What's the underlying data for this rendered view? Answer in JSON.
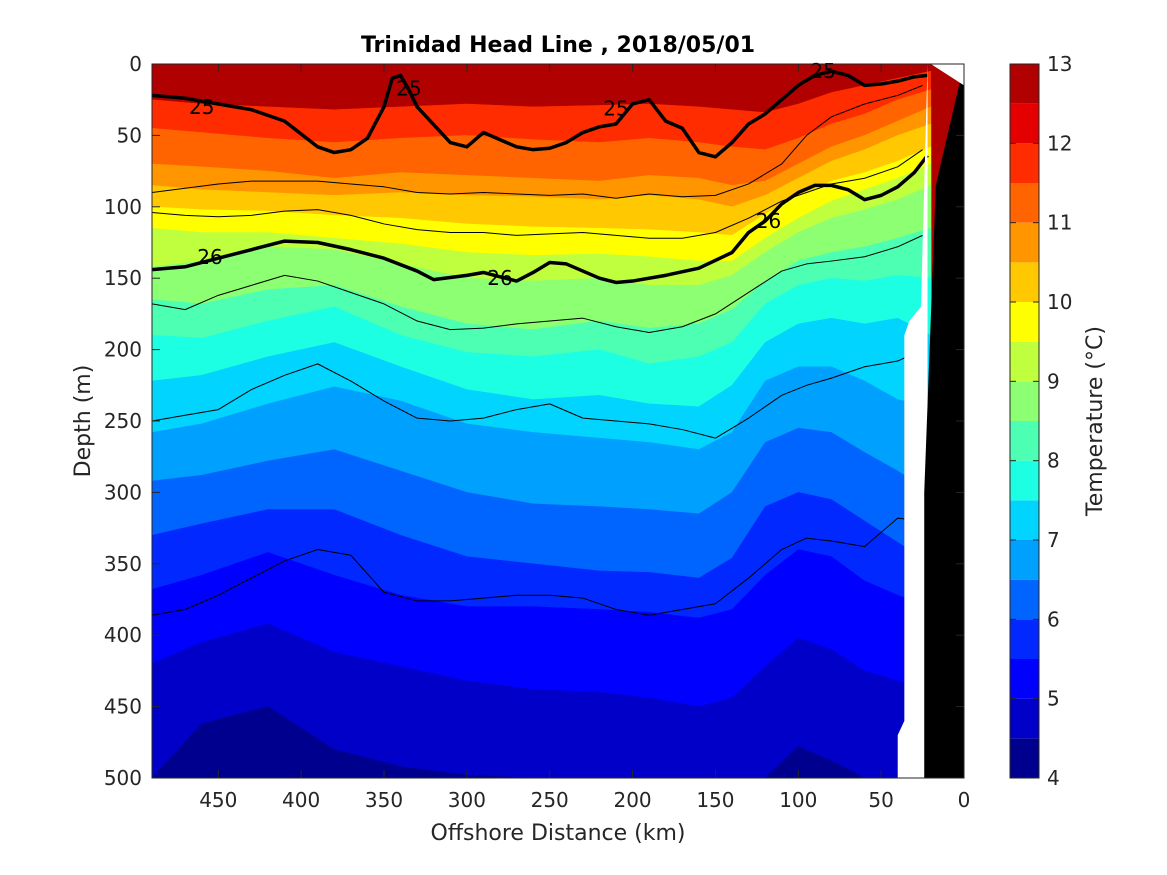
{
  "chart_data": {
    "type": "heatmap",
    "title": "Trinidad Head Line , 2018/05/01",
    "xlabel": "Offshore Distance (km)",
    "ylabel": "Depth (m)",
    "colorbar_label": "Temperature (°C)",
    "xlim": [
      490,
      0
    ],
    "ylim": [
      0,
      500
    ],
    "x_ticks": [
      450,
      400,
      350,
      300,
      250,
      200,
      150,
      100,
      50,
      0
    ],
    "y_ticks": [
      0,
      50,
      100,
      150,
      200,
      250,
      300,
      350,
      400,
      450,
      500
    ],
    "colorbar_ticks": [
      4,
      5,
      6,
      7,
      8,
      9,
      10,
      11,
      12,
      13
    ],
    "temperature_levels": [
      4,
      4.5,
      5,
      5.5,
      6,
      6.5,
      7,
      7.5,
      8,
      8.5,
      9,
      9.5,
      10,
      10.5,
      11,
      11.5,
      12,
      12.5,
      13
    ],
    "level_colors": [
      "#00008f",
      "#0000c8",
      "#0000ff",
      "#0028ff",
      "#0064ff",
      "#00a0ff",
      "#00d4ff",
      "#1cffe2",
      "#4cffb2",
      "#8cff72",
      "#c0ff3e",
      "#ffff00",
      "#ffc800",
      "#ff9600",
      "#ff6400",
      "#ff2c00",
      "#e40000",
      "#b00000"
    ],
    "isotherms": [
      {
        "temp": 12,
        "x": [
          490,
          460,
          420,
          380,
          340,
          300,
          260,
          220,
          190,
          160,
          140,
          120,
          100,
          80,
          60,
          40,
          20
        ],
        "y": [
          25,
          28,
          30,
          32,
          30,
          28,
          30,
          29,
          28,
          30,
          32,
          34,
          28,
          20,
          15,
          10,
          5
        ]
      },
      {
        "temp": 11.5,
        "x": [
          490,
          460,
          420,
          380,
          340,
          300,
          260,
          220,
          190,
          160,
          140,
          120,
          100,
          80,
          60,
          40,
          20
        ],
        "y": [
          45,
          48,
          52,
          55,
          52,
          50,
          53,
          55,
          52,
          55,
          58,
          60,
          52,
          42,
          35,
          25,
          18
        ]
      },
      {
        "temp": 11,
        "x": [
          490,
          460,
          420,
          380,
          340,
          300,
          260,
          220,
          190,
          160,
          140,
          120,
          100,
          80,
          60,
          40,
          20
        ],
        "y": [
          70,
          72,
          75,
          80,
          76,
          78,
          80,
          82,
          78,
          80,
          85,
          82,
          70,
          58,
          50,
          40,
          30
        ]
      },
      {
        "temp": 10.5,
        "x": [
          490,
          460,
          420,
          380,
          340,
          300,
          260,
          220,
          190,
          160,
          140,
          120,
          100,
          80,
          60,
          40,
          20
        ],
        "y": [
          85,
          88,
          90,
          92,
          90,
          92,
          93,
          95,
          92,
          95,
          100,
          92,
          80,
          68,
          60,
          50,
          42
        ]
      },
      {
        "temp": 10,
        "x": [
          490,
          460,
          420,
          380,
          340,
          300,
          260,
          220,
          190,
          160,
          140,
          120,
          100,
          80,
          60,
          40,
          20
        ],
        "y": [
          100,
          102,
          103,
          106,
          108,
          112,
          114,
          115,
          116,
          118,
          120,
          105,
          92,
          82,
          76,
          68,
          58
        ]
      },
      {
        "temp": 9.5,
        "x": [
          490,
          460,
          420,
          380,
          340,
          300,
          260,
          220,
          190,
          160,
          140,
          120,
          100,
          80,
          60,
          40,
          20
        ],
        "y": [
          115,
          118,
          118,
          122,
          126,
          132,
          134,
          133,
          135,
          138,
          138,
          122,
          108,
          96,
          88,
          80,
          70
        ]
      },
      {
        "temp": 9,
        "x": [
          490,
          460,
          420,
          380,
          340,
          300,
          260,
          220,
          190,
          160,
          140,
          120,
          100,
          80,
          60,
          40,
          20
        ],
        "y": [
          142,
          138,
          128,
          130,
          140,
          150,
          152,
          150,
          155,
          155,
          148,
          132,
          118,
          108,
          102,
          95,
          85
        ]
      },
      {
        "temp": 8.5,
        "x": [
          490,
          460,
          420,
          380,
          340,
          300,
          260,
          220,
          190,
          160,
          140,
          120,
          100,
          80,
          60,
          40,
          20
        ],
        "y": [
          165,
          168,
          158,
          155,
          170,
          182,
          186,
          180,
          185,
          182,
          172,
          152,
          138,
          132,
          128,
          122,
          115
        ]
      },
      {
        "temp": 8,
        "x": [
          490,
          460,
          420,
          380,
          340,
          300,
          260,
          220,
          190,
          160,
          140,
          120,
          100,
          80,
          60,
          40,
          20
        ],
        "y": [
          190,
          192,
          180,
          170,
          190,
          202,
          205,
          200,
          210,
          205,
          195,
          168,
          155,
          150,
          152,
          148,
          150
        ]
      },
      {
        "temp": 7.5,
        "x": [
          490,
          460,
          420,
          380,
          340,
          300,
          260,
          220,
          190,
          160,
          140,
          120,
          100,
          80,
          60,
          40,
          20
        ],
        "y": [
          222,
          218,
          205,
          195,
          212,
          228,
          235,
          232,
          238,
          240,
          225,
          195,
          182,
          178,
          182,
          178,
          190
        ]
      },
      {
        "temp": 7,
        "x": [
          490,
          460,
          420,
          380,
          340,
          300,
          260,
          220,
          190,
          160,
          140,
          120,
          100,
          80,
          60,
          40,
          20
        ],
        "y": [
          258,
          252,
          238,
          226,
          236,
          252,
          258,
          262,
          265,
          270,
          258,
          222,
          212,
          212,
          222,
          235,
          240
        ]
      },
      {
        "temp": 6.5,
        "x": [
          490,
          460,
          420,
          380,
          340,
          300,
          260,
          220,
          190,
          160,
          140,
          120,
          100,
          80,
          60,
          40,
          20
        ],
        "y": [
          292,
          288,
          278,
          270,
          285,
          300,
          308,
          310,
          312,
          315,
          300,
          265,
          255,
          258,
          272,
          285,
          300
        ]
      },
      {
        "temp": 6,
        "x": [
          490,
          460,
          420,
          380,
          340,
          300,
          260,
          220,
          190,
          160,
          140,
          120,
          100,
          80,
          60,
          40,
          20
        ],
        "y": [
          330,
          322,
          312,
          312,
          330,
          345,
          350,
          355,
          356,
          360,
          346,
          310,
          300,
          305,
          320,
          335,
          350
        ]
      },
      {
        "temp": 5.5,
        "x": [
          490,
          460,
          420,
          380,
          340,
          300,
          260,
          220,
          190,
          160,
          140,
          120,
          100,
          80,
          60,
          40,
          20
        ],
        "y": [
          368,
          358,
          342,
          358,
          372,
          380,
          380,
          382,
          384,
          388,
          382,
          358,
          340,
          345,
          362,
          372,
          380
        ]
      },
      {
        "temp": 5,
        "x": [
          490,
          460,
          420,
          380,
          340,
          300,
          260,
          220,
          190,
          160,
          140,
          120,
          100,
          80,
          60,
          40,
          20
        ],
        "y": [
          420,
          405,
          392,
          412,
          422,
          432,
          438,
          440,
          444,
          450,
          444,
          422,
          402,
          410,
          425,
          432,
          440
        ]
      },
      {
        "temp": 4.5,
        "x": [
          490,
          460,
          420,
          380,
          340,
          300,
          260,
          220,
          190,
          160,
          140,
          120,
          100,
          80,
          60,
          40,
          20
        ],
        "y": [
          500,
          462,
          450,
          480,
          492,
          498,
          500,
          500,
          500,
          500,
          500,
          500,
          478,
          488,
          500,
          500,
          500
        ]
      }
    ],
    "density_contours": [
      {
        "sigma": 24.5,
        "x": [
          490,
          470,
          450,
          430,
          410,
          390,
          370,
          350,
          330,
          310,
          290,
          270,
          250,
          230,
          210,
          190,
          170,
          150,
          130,
          110,
          95,
          80,
          60,
          40,
          25
        ],
        "y": [
          90,
          87,
          84,
          82,
          82,
          82,
          84,
          86,
          90,
          91,
          90,
          91,
          92,
          91,
          94,
          91,
          93,
          92,
          84,
          70,
          50,
          37,
          28,
          22,
          15
        ],
        "labeled": false
      },
      {
        "sigma": 25,
        "x": [
          490,
          470,
          450,
          430,
          410,
          390,
          380,
          370,
          360,
          350,
          345,
          340,
          335,
          330,
          310,
          300,
          290,
          270,
          260,
          250,
          240,
          230,
          220,
          210,
          200,
          190,
          180,
          170,
          160,
          150,
          140,
          130,
          120,
          110,
          100,
          90,
          80,
          70,
          60,
          50,
          40,
          30,
          22
        ],
        "y": [
          22,
          24,
          28,
          32,
          40,
          58,
          62,
          60,
          52,
          30,
          10,
          8,
          18,
          30,
          55,
          58,
          48,
          58,
          60,
          59,
          55,
          48,
          44,
          42,
          28,
          25,
          40,
          45,
          62,
          65,
          55,
          42,
          35,
          25,
          15,
          8,
          5,
          8,
          15,
          14,
          12,
          9,
          8
        ],
        "labeled": true,
        "label_positions": [
          [
            460,
            30
          ],
          [
            335,
            17
          ],
          [
            210,
            31
          ],
          [
            85,
            5
          ]
        ]
      },
      {
        "sigma": 25.5,
        "x": [
          490,
          470,
          450,
          430,
          410,
          390,
          370,
          350,
          330,
          310,
          290,
          270,
          250,
          230,
          210,
          190,
          170,
          150,
          130,
          110,
          95,
          80,
          60,
          40,
          25
        ],
        "y": [
          104,
          106,
          107,
          106,
          103,
          102,
          106,
          112,
          116,
          118,
          118,
          120,
          119,
          118,
          120,
          122,
          122,
          118,
          108,
          96,
          90,
          84,
          80,
          72,
          60
        ],
        "labeled": false
      },
      {
        "sigma": 26,
        "x": [
          490,
          470,
          450,
          430,
          410,
          390,
          370,
          350,
          330,
          320,
          300,
          290,
          280,
          270,
          260,
          250,
          240,
          220,
          210,
          200,
          180,
          160,
          140,
          130,
          120,
          110,
          100,
          90,
          80,
          70,
          60,
          50,
          40,
          30,
          22
        ],
        "y": [
          144,
          142,
          136,
          130,
          124,
          125,
          130,
          136,
          145,
          151,
          148,
          146,
          149,
          152,
          146,
          139,
          140,
          150,
          153,
          152,
          148,
          143,
          132,
          118,
          110,
          98,
          90,
          85,
          85,
          88,
          95,
          92,
          86,
          76,
          64
        ],
        "labeled": true,
        "label_positions": [
          [
            455,
            135
          ],
          [
            280,
            150
          ],
          [
            118,
            110
          ]
        ]
      },
      {
        "sigma": 26.3,
        "x": [
          490,
          470,
          450,
          430,
          410,
          390,
          370,
          350,
          330,
          310,
          290,
          270,
          250,
          230,
          210,
          190,
          170,
          150,
          130,
          110,
          95,
          80,
          60,
          40,
          25
        ],
        "y": [
          168,
          172,
          162,
          155,
          148,
          152,
          160,
          168,
          180,
          186,
          185,
          182,
          180,
          178,
          184,
          188,
          184,
          175,
          160,
          145,
          140,
          138,
          135,
          128,
          120
        ],
        "labeled": false
      },
      {
        "sigma": 26.5,
        "x": [
          490,
          470,
          450,
          430,
          410,
          390,
          370,
          350,
          330,
          310,
          290,
          270,
          250,
          230,
          210,
          190,
          170,
          150,
          130,
          110,
          95,
          80,
          60,
          40,
          25
        ],
        "y": [
          250,
          246,
          242,
          228,
          218,
          210,
          222,
          236,
          248,
          250,
          248,
          242,
          238,
          248,
          250,
          252,
          256,
          262,
          248,
          232,
          225,
          220,
          212,
          208,
          200
        ],
        "labeled": false
      },
      {
        "sigma": 26.7,
        "x": [
          490,
          470,
          450,
          430,
          410,
          390,
          370,
          350,
          330,
          310,
          290,
          270,
          250,
          230,
          210,
          190,
          170,
          150,
          130,
          110,
          95,
          80,
          60,
          40,
          25
        ],
        "y": [
          386,
          382,
          372,
          360,
          348,
          340,
          344,
          370,
          376,
          376,
          374,
          372,
          372,
          374,
          382,
          386,
          382,
          378,
          360,
          340,
          332,
          334,
          338,
          318,
          320
        ],
        "labeled": false
      }
    ],
    "bottom_topography": {
      "x": [
        40,
        36,
        30,
        28,
        26,
        24,
        22,
        20,
        0,
        0,
        20,
        22,
        24,
        26,
        28,
        30,
        36,
        40
      ],
      "y": [
        500,
        500,
        500,
        380,
        300,
        200,
        120,
        60,
        0,
        500,
        500,
        500,
        500,
        500,
        500,
        500,
        500,
        500
      ]
    }
  }
}
